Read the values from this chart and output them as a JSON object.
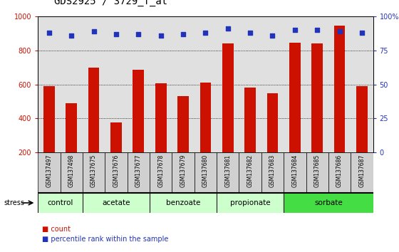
{
  "title": "GDS2925 / 3729_f_at",
  "samples": [
    "GSM137497",
    "GSM137498",
    "GSM137675",
    "GSM137676",
    "GSM137677",
    "GSM137678",
    "GSM137679",
    "GSM137680",
    "GSM137681",
    "GSM137682",
    "GSM137683",
    "GSM137684",
    "GSM137685",
    "GSM137686",
    "GSM137687"
  ],
  "counts": [
    590,
    490,
    700,
    375,
    685,
    605,
    530,
    610,
    840,
    580,
    550,
    845,
    840,
    945,
    590
  ],
  "percentile_ranks": [
    88,
    86,
    89,
    87,
    87,
    86,
    87,
    88,
    91,
    88,
    86,
    90,
    90,
    89,
    88
  ],
  "groups": [
    {
      "label": "control",
      "start": 0,
      "end": 2,
      "color": "#ccffcc"
    },
    {
      "label": "acetate",
      "start": 2,
      "end": 5,
      "color": "#ccffcc"
    },
    {
      "label": "benzoate",
      "start": 5,
      "end": 8,
      "color": "#ccffcc"
    },
    {
      "label": "propionate",
      "start": 8,
      "end": 11,
      "color": "#ccffcc"
    },
    {
      "label": "sorbate",
      "start": 11,
      "end": 15,
      "color": "#44dd44"
    }
  ],
  "bar_color": "#cc1100",
  "dot_color": "#2233bb",
  "ylim_left": [
    200,
    1000
  ],
  "ylim_right": [
    0,
    100
  ],
  "yticks_left": [
    200,
    400,
    600,
    800,
    1000
  ],
  "yticks_right": [
    0,
    25,
    50,
    75,
    100
  ],
  "yticklabels_right": [
    "0",
    "25",
    "50",
    "75",
    "100%"
  ],
  "background_color": "#ffffff",
  "plot_bg_color": "#e0e0e0",
  "xtick_bg_color": "#d0d0d0",
  "grid_color": "#000000",
  "title_fontsize": 10,
  "tick_fontsize": 7,
  "bar_width": 0.5
}
